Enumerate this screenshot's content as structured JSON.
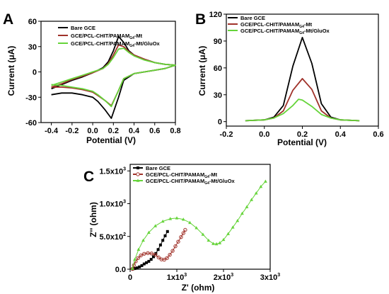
{
  "chart_data": [
    {
      "panel": "A",
      "type": "line",
      "xlabel": "Potential (V)",
      "ylabel": "Current (μA)",
      "xlim": [
        -0.5,
        0.8
      ],
      "ylim": [
        -60,
        60
      ],
      "xticks": [
        -0.4,
        -0.2,
        0.0,
        0.2,
        0.4,
        0.6,
        0.8
      ],
      "xtick_labels": [
        "-0.4",
        "-0.2",
        "0.0",
        "0.2",
        "0.4",
        "0.6",
        "0.8"
      ],
      "yticks": [
        -60,
        -30,
        0,
        30,
        60
      ],
      "ytick_labels": [
        "-60",
        "-30",
        "0",
        "30",
        "60"
      ],
      "legend_position": "top-left",
      "series": [
        {
          "name": "Bare GCE",
          "name_sub": "",
          "name_tail": "",
          "color": "#000000",
          "forward": [
            [
              -0.4,
              -20
            ],
            [
              -0.3,
              -15
            ],
            [
              -0.2,
              -10
            ],
            [
              -0.1,
              -6
            ],
            [
              0.0,
              -1
            ],
            [
              0.1,
              5
            ],
            [
              0.15,
              12
            ],
            [
              0.2,
              25
            ],
            [
              0.25,
              42
            ],
            [
              0.3,
              35
            ],
            [
              0.35,
              25
            ],
            [
              0.4,
              20
            ],
            [
              0.5,
              15
            ],
            [
              0.6,
              11
            ],
            [
              0.7,
              9
            ],
            [
              0.8,
              8
            ]
          ],
          "reverse": [
            [
              0.8,
              8
            ],
            [
              0.7,
              4
            ],
            [
              0.6,
              2
            ],
            [
              0.5,
              0
            ],
            [
              0.4,
              -2
            ],
            [
              0.3,
              -10
            ],
            [
              0.25,
              -30
            ],
            [
              0.18,
              -55
            ],
            [
              0.12,
              -45
            ],
            [
              0.05,
              -35
            ],
            [
              0.0,
              -30
            ],
            [
              -0.1,
              -27
            ],
            [
              -0.2,
              -25
            ],
            [
              -0.3,
              -25
            ],
            [
              -0.4,
              -27
            ]
          ]
        },
        {
          "name": "GCE/PCL-CHIT/PAMAM",
          "name_sub": "G4",
          "name_tail": "-Mt",
          "color": "#a0322a",
          "forward": [
            [
              -0.4,
              -18
            ],
            [
              -0.3,
              -14
            ],
            [
              -0.2,
              -9
            ],
            [
              -0.1,
              -5
            ],
            [
              0.0,
              -1
            ],
            [
              0.1,
              4
            ],
            [
              0.15,
              10
            ],
            [
              0.2,
              20
            ],
            [
              0.25,
              32
            ],
            [
              0.3,
              30
            ],
            [
              0.35,
              24
            ],
            [
              0.4,
              20
            ],
            [
              0.5,
              15
            ],
            [
              0.6,
              11
            ],
            [
              0.7,
              9
            ],
            [
              0.8,
              8
            ]
          ],
          "reverse": [
            [
              0.8,
              8
            ],
            [
              0.7,
              4
            ],
            [
              0.6,
              2
            ],
            [
              0.5,
              0
            ],
            [
              0.4,
              -2
            ],
            [
              0.3,
              -8
            ],
            [
              0.25,
              -22
            ],
            [
              0.18,
              -40
            ],
            [
              0.12,
              -34
            ],
            [
              0.05,
              -28
            ],
            [
              0.0,
              -24
            ],
            [
              -0.1,
              -21
            ],
            [
              -0.2,
              -19
            ],
            [
              -0.3,
              -18
            ],
            [
              -0.4,
              -18
            ]
          ]
        },
        {
          "name": "GCE/PCL-CHIT/PAMAM",
          "name_sub": "G4",
          "name_tail": "-Mt/GluOx",
          "color": "#66d43a",
          "forward": [
            [
              -0.4,
              -16
            ],
            [
              -0.3,
              -12
            ],
            [
              -0.2,
              -8
            ],
            [
              -0.1,
              -4
            ],
            [
              0.0,
              0
            ],
            [
              0.1,
              4
            ],
            [
              0.15,
              9
            ],
            [
              0.2,
              17
            ],
            [
              0.25,
              27
            ],
            [
              0.3,
              28
            ],
            [
              0.35,
              23
            ],
            [
              0.4,
              19
            ],
            [
              0.5,
              14
            ],
            [
              0.6,
              11
            ],
            [
              0.7,
              9
            ],
            [
              0.8,
              8
            ]
          ],
          "reverse": [
            [
              0.8,
              8
            ],
            [
              0.7,
              4
            ],
            [
              0.6,
              2
            ],
            [
              0.5,
              0
            ],
            [
              0.4,
              -2
            ],
            [
              0.3,
              -8
            ],
            [
              0.25,
              -22
            ],
            [
              0.18,
              -41
            ],
            [
              0.12,
              -34
            ],
            [
              0.05,
              -27
            ],
            [
              0.0,
              -23
            ],
            [
              -0.1,
              -20
            ],
            [
              -0.2,
              -18
            ],
            [
              -0.3,
              -16
            ],
            [
              -0.4,
              -15
            ]
          ]
        }
      ]
    },
    {
      "panel": "B",
      "type": "line",
      "xlabel": "Potential (V)",
      "ylabel": "Current (μA)",
      "xlim": [
        -0.2,
        0.6
      ],
      "ylim": [
        -5,
        120
      ],
      "xticks": [
        -0.2,
        0.0,
        0.2,
        0.4,
        0.6
      ],
      "xtick_labels": [
        "-0.2",
        "0.0",
        "0.2",
        "0.4",
        "0.6"
      ],
      "yticks": [
        0,
        30,
        60,
        90,
        120
      ],
      "ytick_labels": [
        "0",
        "30",
        "60",
        "90",
        "120"
      ],
      "legend_position": "top-left",
      "series": [
        {
          "name": "Bare GCE",
          "name_sub": "",
          "name_tail": "",
          "color": "#000000",
          "points": [
            [
              -0.1,
              1
            ],
            [
              0.0,
              2
            ],
            [
              0.05,
              5
            ],
            [
              0.1,
              18
            ],
            [
              0.15,
              62
            ],
            [
              0.2,
              94
            ],
            [
              0.25,
              65
            ],
            [
              0.3,
              20
            ],
            [
              0.35,
              5
            ],
            [
              0.4,
              2
            ],
            [
              0.5,
              1
            ]
          ]
        },
        {
          "name": "GCE/PCL-CHIT/PAMAM",
          "name_sub": "G4",
          "name_tail": "-Mt",
          "color": "#a0322a",
          "points": [
            [
              -0.1,
              1
            ],
            [
              0.0,
              2
            ],
            [
              0.05,
              4
            ],
            [
              0.1,
              12
            ],
            [
              0.15,
              35
            ],
            [
              0.2,
              48
            ],
            [
              0.25,
              36
            ],
            [
              0.3,
              12
            ],
            [
              0.35,
              4
            ],
            [
              0.4,
              2
            ],
            [
              0.5,
              1
            ]
          ]
        },
        {
          "name": "GCE/PCL-CHIT/PAMAM",
          "name_sub": "G4",
          "name_tail": "-Mt/GluOx",
          "color": "#66d43a",
          "points": [
            [
              -0.1,
              1
            ],
            [
              0.0,
              2
            ],
            [
              0.05,
              4
            ],
            [
              0.1,
              9
            ],
            [
              0.15,
              18
            ],
            [
              0.18,
              25
            ],
            [
              0.2,
              24
            ],
            [
              0.25,
              17
            ],
            [
              0.3,
              8
            ],
            [
              0.35,
              4
            ],
            [
              0.4,
              2
            ],
            [
              0.5,
              1
            ]
          ]
        }
      ]
    },
    {
      "panel": "C",
      "type": "scatter",
      "xlabel": "Z' (ohm)",
      "ylabel": "Z'' (ohm)",
      "xlim": [
        0,
        3000
      ],
      "ylim": [
        0,
        1600
      ],
      "xticks": [
        0,
        1000,
        2000,
        3000
      ],
      "xtick_labels": [
        "0",
        "1x10",
        "2x10",
        "3x10"
      ],
      "xtick_exp": [
        "",
        "3",
        "3",
        "3"
      ],
      "yticks": [
        0,
        500,
        1000,
        1500
      ],
      "ytick_labels": [
        "0.0",
        "5.0x10",
        "1.0x10",
        "1.5x10"
      ],
      "ytick_exp": [
        "",
        "2",
        "3",
        "3"
      ],
      "legend_position": "top-left",
      "series": [
        {
          "name": "Bare GCE",
          "name_sub": "",
          "name_tail": "",
          "color": "#000000",
          "marker": "square",
          "points": [
            [
              60,
              5
            ],
            [
              100,
              10
            ],
            [
              150,
              20
            ],
            [
              200,
              35
            ],
            [
              250,
              55
            ],
            [
              300,
              80
            ],
            [
              350,
              100
            ],
            [
              400,
              120
            ],
            [
              450,
              150
            ],
            [
              500,
              190
            ],
            [
              550,
              240
            ],
            [
              600,
              300
            ],
            [
              650,
              370
            ],
            [
              700,
              440
            ],
            [
              750,
              510
            ],
            [
              800,
              575
            ]
          ]
        },
        {
          "name": "GCE/PCL-CHIT/PAMAM",
          "name_sub": "G4",
          "name_tail": "-Mt",
          "color": "#a0322a",
          "marker": "circle",
          "points": [
            [
              50,
              5
            ],
            [
              80,
              60
            ],
            [
              120,
              120
            ],
            [
              170,
              170
            ],
            [
              230,
              210
            ],
            [
              300,
              235
            ],
            [
              380,
              245
            ],
            [
              460,
              240
            ],
            [
              540,
              220
            ],
            [
              610,
              180
            ],
            [
              670,
              150
            ],
            [
              730,
              145
            ],
            [
              790,
              170
            ],
            [
              850,
              220
            ],
            [
              910,
              280
            ],
            [
              970,
              350
            ],
            [
              1030,
              420
            ],
            [
              1090,
              490
            ],
            [
              1140,
              550
            ],
            [
              1180,
              600
            ]
          ]
        },
        {
          "name": "GCE/PCL-CHIT/PAMAM",
          "name_sub": "G4",
          "name_tail": "-Mt/GluOx",
          "color": "#66d43a",
          "marker": "triangle",
          "points": [
            [
              50,
              10
            ],
            [
              100,
              150
            ],
            [
              180,
              300
            ],
            [
              280,
              440
            ],
            [
              400,
              560
            ],
            [
              540,
              660
            ],
            [
              700,
              730
            ],
            [
              860,
              770
            ],
            [
              1000,
              780
            ],
            [
              1140,
              760
            ],
            [
              1280,
              710
            ],
            [
              1420,
              630
            ],
            [
              1560,
              530
            ],
            [
              1680,
              440
            ],
            [
              1780,
              390
            ],
            [
              1850,
              385
            ],
            [
              1920,
              400
            ],
            [
              2000,
              450
            ],
            [
              2100,
              540
            ],
            [
              2200,
              640
            ],
            [
              2300,
              740
            ],
            [
              2400,
              850
            ],
            [
              2500,
              950
            ],
            [
              2600,
              1060
            ],
            [
              2700,
              1160
            ],
            [
              2800,
              1260
            ],
            [
              2900,
              1340
            ]
          ]
        }
      ]
    }
  ]
}
